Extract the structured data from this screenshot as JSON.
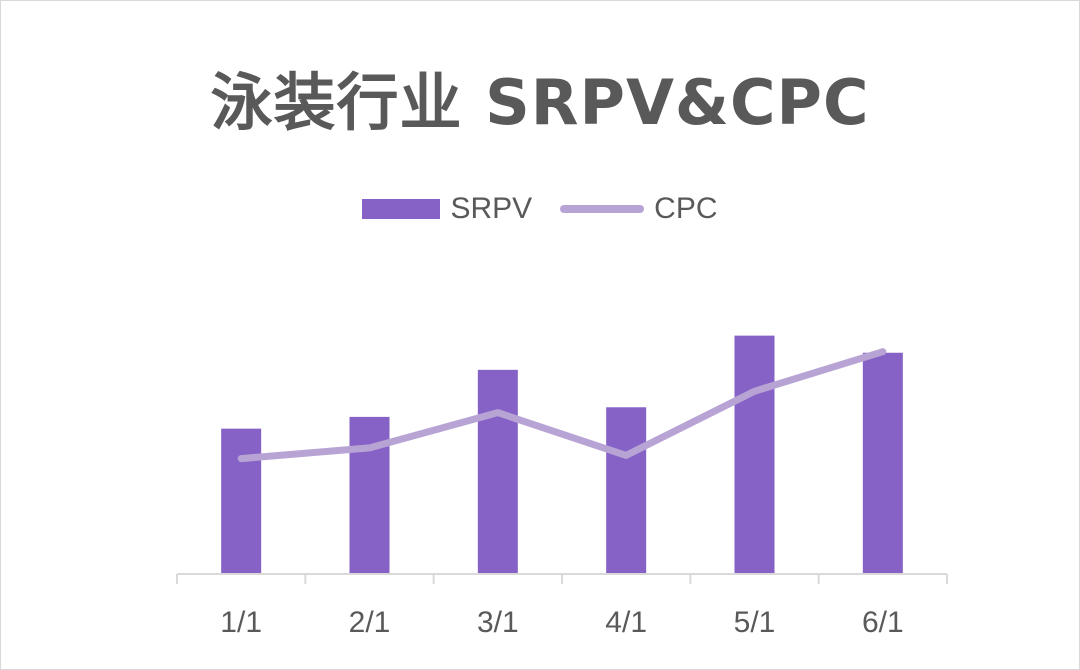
{
  "chart_data": {
    "type": "bar",
    "title": "泳装行业 SRPV&CPC",
    "categories": [
      "1/1",
      "2/1",
      "3/1",
      "4/1",
      "5/1",
      "6/1"
    ],
    "series": [
      {
        "name": "SRPV",
        "kind": "bar",
        "values": [
          135,
          146,
          190,
          155,
          222,
          206
        ]
      },
      {
        "name": "CPC",
        "kind": "line",
        "values": [
          107,
          117,
          150,
          110,
          170,
          207
        ]
      }
    ],
    "ylim": [
      0,
      260
    ],
    "grid": false,
    "legend": "top",
    "colors": {
      "SRPV": "#8662c7",
      "CPC": "#b8a4d4",
      "text": "#595959",
      "axis": "#d9d9d9"
    }
  }
}
